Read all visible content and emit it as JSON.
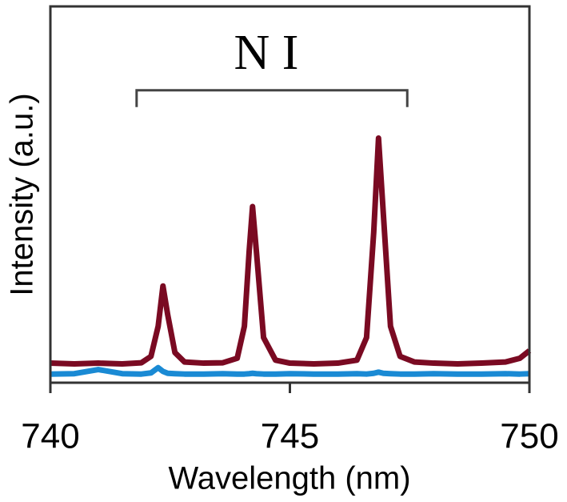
{
  "chart_data": {
    "type": "line",
    "xlabel": "Wavelength (nm)",
    "ylabel": "Intensity (a.u.)",
    "annotation": {
      "text": "N I",
      "x_range": [
        741.8,
        747.45
      ],
      "y": 77.7
    },
    "x": [
      740,
      740.5,
      741,
      741.5,
      741.9,
      742.1,
      742.25,
      742.35,
      742.45,
      742.6,
      742.8,
      743.2,
      743.6,
      743.9,
      744.05,
      744.15,
      744.22,
      744.3,
      744.45,
      744.7,
      745,
      745.5,
      746,
      746.4,
      746.6,
      746.75,
      746.85,
      746.95,
      747.1,
      747.3,
      747.6,
      748,
      748.5,
      749,
      749.5,
      749.8,
      750
    ],
    "series": [
      {
        "color": "#7a0a22",
        "values": [
          5.2,
          5.0,
          5.2,
          5.0,
          5.3,
          7,
          15,
          25.7,
          18,
          8,
          5.5,
          5.2,
          5.3,
          6.5,
          15,
          35,
          46.8,
          35,
          12,
          6,
          5.2,
          5,
          5.2,
          6,
          12,
          40,
          65,
          45,
          15,
          7,
          5.5,
          5.2,
          5,
          5.2,
          5.5,
          6.5,
          8.5
        ]
      },
      {
        "color": "#1a8ad4",
        "values": [
          2.3,
          2.4,
          3.5,
          2.4,
          2.3,
          2.6,
          4,
          3,
          2.5,
          2.4,
          2.3,
          2.3,
          2.4,
          2.3,
          2.3,
          2.4,
          2.5,
          2.4,
          2.3,
          2.3,
          2.4,
          2.3,
          2.3,
          2.4,
          2.3,
          2.5,
          2.8,
          2.5,
          2.4,
          2.3,
          2.3,
          2.4,
          2.3,
          2.3,
          2.4,
          2.3,
          2.4
        ]
      }
    ],
    "xlim": [
      740,
      750
    ],
    "xticks": [
      740,
      745,
      750
    ],
    "ylim": [
      0,
      100
    ],
    "grid": false
  }
}
